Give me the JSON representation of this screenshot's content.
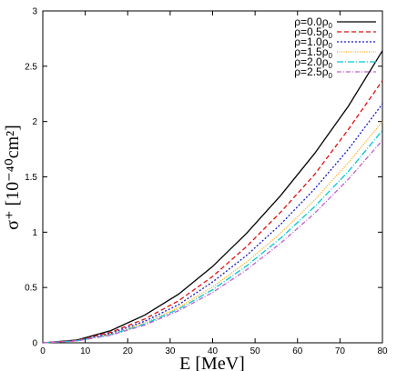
{
  "chart_data": {
    "type": "line",
    "xlabel": "E [MeV]",
    "ylabel": "σ⁺ [10⁻⁴⁰cm²]",
    "xlim": [
      0,
      80
    ],
    "ylim": [
      0,
      3
    ],
    "x_ticks": [
      "0",
      "10",
      "20",
      "30",
      "40",
      "50",
      "60",
      "70",
      "80"
    ],
    "y_ticks": [
      "0",
      "0.5",
      "1",
      "1.5",
      "2",
      "2.5",
      "3"
    ],
    "grid": false,
    "legend_position": "top-right",
    "x": [
      0,
      8,
      16,
      24,
      32,
      40,
      48,
      56,
      64,
      72,
      80
    ],
    "series": [
      {
        "name": "ρ=0.0ρ0",
        "label_main": "ρ=0.0ρ",
        "label_sub": "0",
        "color": "#000000",
        "dash": "",
        "values": [
          0,
          0.025,
          0.11,
          0.25,
          0.44,
          0.69,
          0.99,
          1.33,
          1.71,
          2.14,
          2.64
        ]
      },
      {
        "name": "ρ=0.5ρ0",
        "label_main": "ρ=0.5ρ",
        "label_sub": "0",
        "color": "#e01010",
        "dash": "5,3",
        "values": [
          0,
          0.022,
          0.095,
          0.215,
          0.38,
          0.6,
          0.87,
          1.18,
          1.52,
          1.93,
          2.37
        ]
      },
      {
        "name": "ρ=1.0ρ0",
        "label_main": "ρ=1.0ρ",
        "label_sub": "0",
        "color": "#1818c8",
        "dash": "2,2",
        "values": [
          0,
          0.02,
          0.085,
          0.195,
          0.345,
          0.55,
          0.79,
          1.07,
          1.39,
          1.75,
          2.16
        ]
      },
      {
        "name": "ρ=1.5ρ0",
        "label_main": "ρ=1.5ρ",
        "label_sub": "0",
        "color": "#ffa500",
        "dash": "1,1.5",
        "values": [
          0,
          0.019,
          0.078,
          0.18,
          0.32,
          0.505,
          0.73,
          0.99,
          1.29,
          1.63,
          2.0
        ]
      },
      {
        "name": "ρ=2.0ρ0",
        "label_main": "ρ=2.0ρ",
        "label_sub": "0",
        "color": "#00c8d8",
        "dash": "7,2,1,2",
        "values": [
          0,
          0.018,
          0.073,
          0.17,
          0.305,
          0.48,
          0.695,
          0.945,
          1.23,
          1.55,
          1.92
        ]
      },
      {
        "name": "ρ=2.5ρ0",
        "label_main": "ρ=2.5ρ",
        "label_sub": "0",
        "color": "#c060d0",
        "dash": "5,2,1,2",
        "values": [
          0,
          0.017,
          0.069,
          0.16,
          0.29,
          0.455,
          0.66,
          0.9,
          1.17,
          1.48,
          1.83
        ]
      }
    ]
  }
}
